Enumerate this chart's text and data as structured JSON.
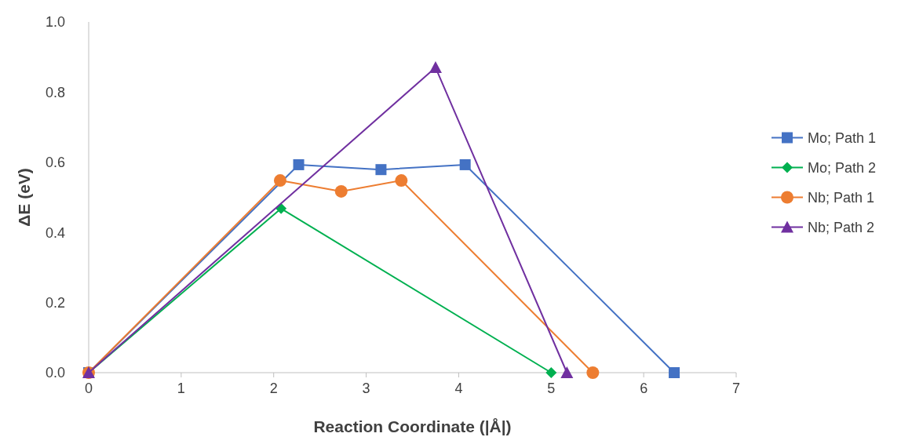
{
  "chart_data": {
    "type": "line",
    "xlabel": "Reaction Coordinate (|Å|)",
    "ylabel": "ΔE (eV)",
    "xlim": [
      0,
      7
    ],
    "xticks": [
      0,
      1,
      2,
      3,
      4,
      5,
      6,
      7
    ],
    "ylim": [
      0,
      1
    ],
    "yticks": [
      {
        "value": 0,
        "label": "0.0"
      },
      {
        "value": 0.2,
        "label": "0.2"
      },
      {
        "value": 0.4,
        "label": "0.4"
      },
      {
        "value": 0.6,
        "label": "0.6"
      },
      {
        "value": 0.8,
        "label": "0.8"
      },
      {
        "value": 1,
        "label": "1.0"
      }
    ],
    "grid": false,
    "legend": "right",
    "line_style": "solid",
    "series": [
      {
        "name": "Mo; Path 1",
        "color": "#4472c4",
        "marker": "square",
        "x": [
          0,
          2.27,
          3.16,
          4.07,
          6.33
        ],
        "values": [
          0,
          0.593,
          0.579,
          0.593,
          0
        ]
      },
      {
        "name": "Mo; Path 2",
        "color": "#00b050",
        "marker": "diamond",
        "x": [
          0,
          2.08,
          5.0
        ],
        "values": [
          0,
          0.468,
          0
        ]
      },
      {
        "name": "Nb; Path 1",
        "color": "#ed7d31",
        "marker": "circle",
        "x": [
          0,
          2.07,
          2.73,
          3.38,
          5.45
        ],
        "values": [
          0,
          0.548,
          0.517,
          0.548,
          0
        ]
      },
      {
        "name": "Nb; Path 2",
        "color": "#7030a0",
        "marker": "triangle",
        "x": [
          0,
          3.75,
          5.17
        ],
        "values": [
          0,
          0.87,
          0
        ]
      }
    ]
  }
}
